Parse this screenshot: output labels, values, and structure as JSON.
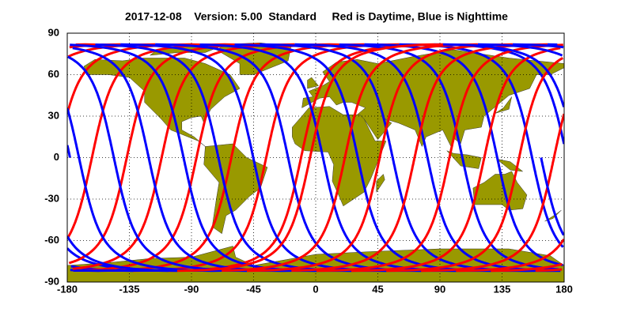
{
  "chart_data": {
    "type": "map",
    "title": "2017-12-08    Version: 5.00  Standard     Red is Daytime, Blue is Nighttime",
    "xlim": [
      -180,
      180
    ],
    "xticks": [
      -180,
      -135,
      -90,
      -45,
      0,
      45,
      90,
      135,
      180
    ],
    "ylim": [
      -90,
      90
    ],
    "yticks": [
      -90,
      -60,
      -30,
      0,
      30,
      60,
      90
    ],
    "grid": true,
    "land_color": "#999900",
    "day_color": "#ff0000",
    "night_color": "#0000ff"
  }
}
